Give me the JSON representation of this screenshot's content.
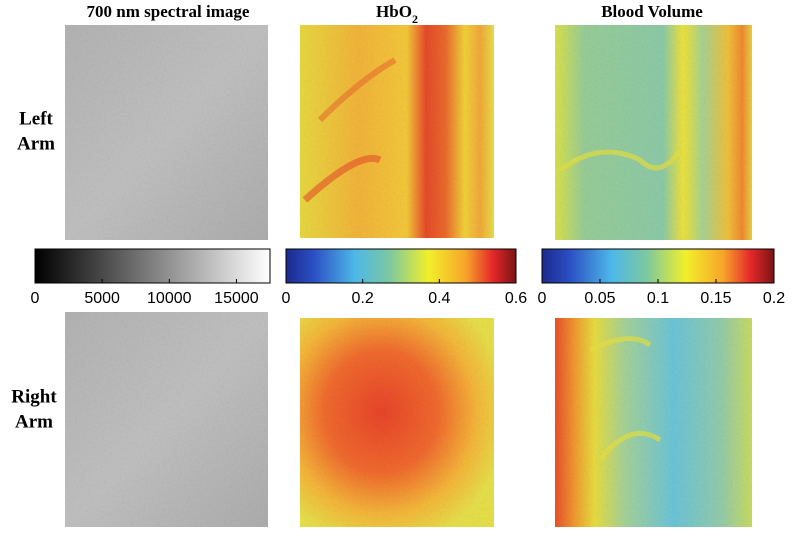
{
  "columns": [
    {
      "title": "700 nm spectral image"
    },
    {
      "title": "HbO",
      "title_sub": "2"
    },
    {
      "title": "Blood Volume"
    }
  ],
  "rows": [
    {
      "label_lines": [
        "Left",
        "Arm"
      ]
    },
    {
      "label_lines": [
        "Right",
        "Arm"
      ]
    }
  ],
  "colorbars": [
    {
      "colormap": "gray",
      "lim": [
        0,
        17500
      ],
      "ticks": [
        0,
        5000,
        10000,
        15000
      ]
    },
    {
      "colormap": "jet",
      "lim": [
        0,
        0.6
      ],
      "ticks": [
        0,
        0.2,
        0.4,
        0.6
      ]
    },
    {
      "colormap": "jet",
      "lim": [
        0,
        0.2
      ],
      "ticks": [
        0,
        0.05,
        0.1,
        0.15,
        0.2
      ]
    }
  ]
}
